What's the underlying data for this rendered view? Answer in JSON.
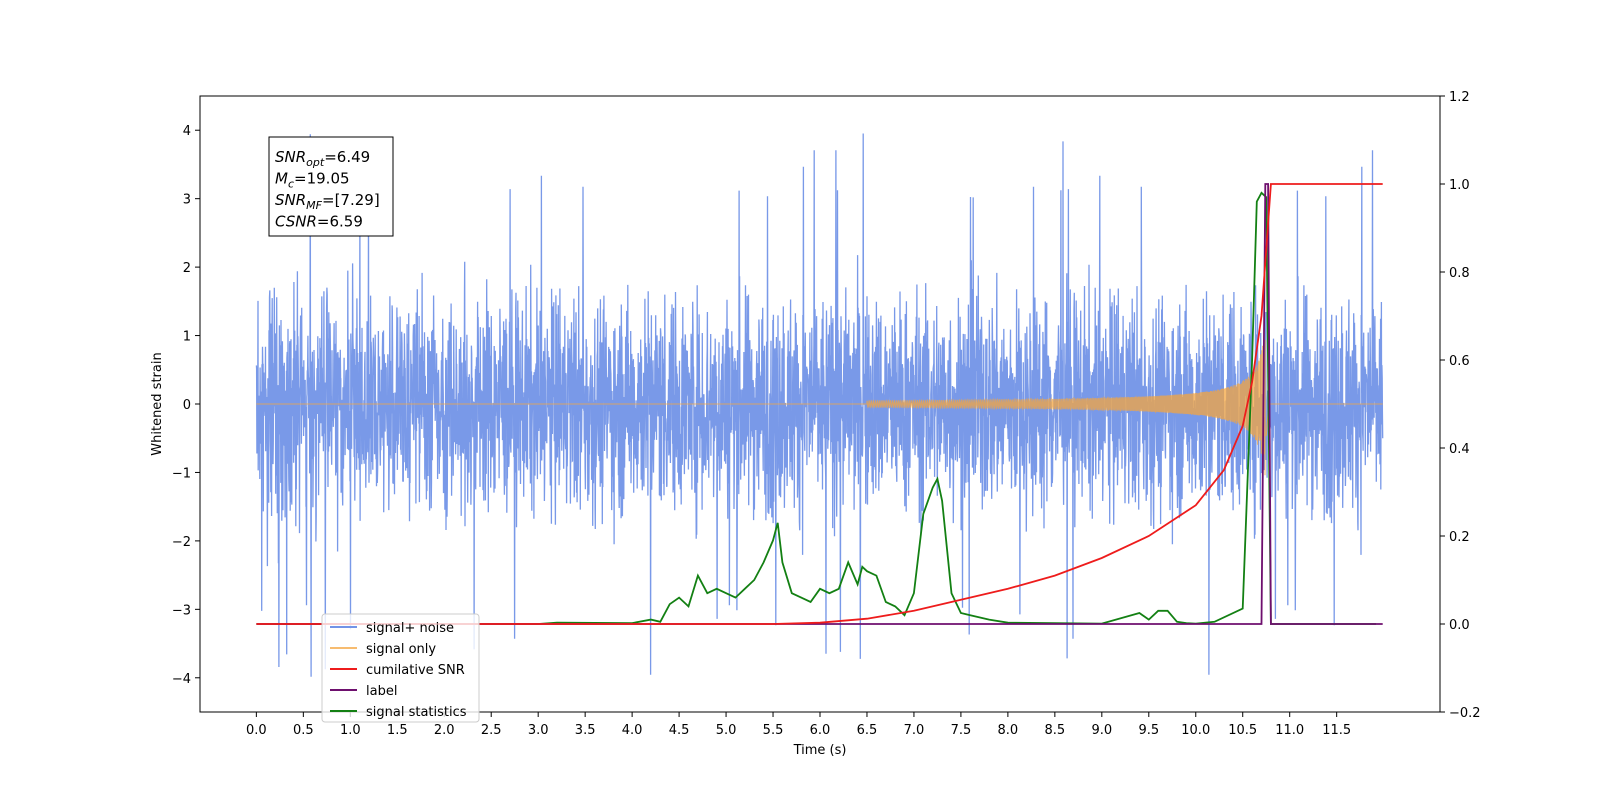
{
  "chart_data": {
    "type": "line",
    "xlabel": "Time (s)",
    "ylabel": "Whitened strain",
    "xlim": [
      -0.6,
      12.6
    ],
    "ylim": [
      -4.5,
      4.5
    ],
    "y2lim": [
      -0.2,
      1.2
    ],
    "x_ticks": [
      0.0,
      0.5,
      1.0,
      1.5,
      2.0,
      2.5,
      3.0,
      3.5,
      4.0,
      4.5,
      5.0,
      5.5,
      6.0,
      6.5,
      7.0,
      7.5,
      8.0,
      8.5,
      9.0,
      9.5,
      10.0,
      10.5,
      11.0,
      11.5
    ],
    "x_tick_labels": [
      "0.0",
      "0.5",
      "1.0",
      "1.5",
      "2.0",
      "2.5",
      "3.0",
      "3.5",
      "4.0",
      "4.5",
      "5.0",
      "5.5",
      "6.0",
      "6.5",
      "7.0",
      "7.5",
      "8.0",
      "8.5",
      "9.0",
      "9.5",
      "10.0",
      "10.5",
      "11.0",
      "11.5"
    ],
    "y_ticks": [
      -4,
      -3,
      -2,
      -1,
      0,
      1,
      2,
      3,
      4
    ],
    "y_tick_labels": [
      "−4",
      "−3",
      "−2",
      "−1",
      "0",
      "1",
      "2",
      "3",
      "4"
    ],
    "y2_ticks": [
      -0.2,
      0.0,
      0.2,
      0.4,
      0.6,
      0.8,
      1.0,
      1.2
    ],
    "y2_tick_labels": [
      "−0.2",
      "0.0",
      "0.2",
      "0.4",
      "0.6",
      "0.8",
      "1.0",
      "1.2"
    ],
    "grid": false,
    "legend_position": "bottom-left",
    "annotation": {
      "lines": [
        {
          "sym": "SNR",
          "sub": "opt",
          "rest": "=6.49"
        },
        {
          "sym": "M",
          "sub": "c",
          "rest": "=19.05"
        },
        {
          "sym": "SNR",
          "sub": "MF",
          "rest": "=[7.29]"
        },
        {
          "sym": "CSNR",
          "sub": "",
          "rest": "=6.59"
        }
      ]
    },
    "series": [
      {
        "name": "signal+ noise",
        "axis": "left",
        "color": "#7293e7",
        "description_values": {
          "t_start": 0.0,
          "t_end": 11.99,
          "typical_abs_max": 2.5,
          "peak_max": 4.03,
          "peak_min": -4.1
        }
      },
      {
        "name": "signal only",
        "axis": "left",
        "color": "#f4a640",
        "chirp": {
          "t_start": 6.5,
          "t_merger": 10.75,
          "peak_amplitude": 1.3
        }
      },
      {
        "name": "cumilative SNR",
        "axis": "right",
        "color": "#ee1c1c",
        "x": [
          0.0,
          5.5,
          6.0,
          6.5,
          7.0,
          7.5,
          8.0,
          8.5,
          9.0,
          9.5,
          10.0,
          10.3,
          10.5,
          10.6,
          10.7,
          10.75,
          10.8,
          11.99
        ],
        "y": [
          0.0,
          0.0,
          0.003,
          0.012,
          0.03,
          0.055,
          0.08,
          0.11,
          0.15,
          0.2,
          0.27,
          0.35,
          0.45,
          0.55,
          0.7,
          0.85,
          1.0,
          1.0
        ]
      },
      {
        "name": "label",
        "axis": "right",
        "color": "#6e0f6e",
        "x": [
          0.0,
          10.7,
          10.74,
          10.77,
          10.8,
          11.99
        ],
        "y": [
          0.0,
          0.0,
          1.0,
          1.0,
          0.0,
          0.0
        ]
      },
      {
        "name": "signal statistics",
        "axis": "right",
        "color": "#138013",
        "x": [
          0.0,
          3.0,
          3.2,
          4.0,
          4.2,
          4.3,
          4.4,
          4.5,
          4.6,
          4.7,
          4.8,
          4.9,
          5.0,
          5.1,
          5.2,
          5.3,
          5.4,
          5.5,
          5.55,
          5.6,
          5.7,
          5.8,
          5.9,
          6.0,
          6.1,
          6.2,
          6.3,
          6.4,
          6.45,
          6.5,
          6.6,
          6.7,
          6.8,
          6.9,
          7.0,
          7.1,
          7.2,
          7.25,
          7.3,
          7.4,
          7.5,
          7.6,
          7.8,
          8.0,
          8.5,
          9.0,
          9.4,
          9.5,
          9.6,
          9.7,
          9.8,
          9.9,
          10.0,
          10.2,
          10.5,
          10.6,
          10.65,
          10.7,
          10.75,
          10.8,
          10.9,
          11.0,
          11.5,
          11.92
        ],
        "y": [
          0.0,
          0.0,
          0.003,
          0.002,
          0.01,
          0.005,
          0.045,
          0.06,
          0.04,
          0.11,
          0.07,
          0.08,
          0.07,
          0.06,
          0.08,
          0.1,
          0.14,
          0.19,
          0.23,
          0.14,
          0.07,
          0.06,
          0.05,
          0.08,
          0.07,
          0.08,
          0.14,
          0.09,
          0.13,
          0.12,
          0.11,
          0.05,
          0.04,
          0.02,
          0.07,
          0.25,
          0.31,
          0.33,
          0.28,
          0.07,
          0.025,
          0.02,
          0.01,
          0.003,
          0.002,
          0.001,
          0.025,
          0.01,
          0.03,
          0.03,
          0.005,
          0.002,
          0.001,
          0.005,
          0.035,
          0.6,
          0.96,
          0.98,
          0.97,
          0.0,
          0.0,
          0.0,
          0.0,
          0.0
        ]
      }
    ]
  }
}
